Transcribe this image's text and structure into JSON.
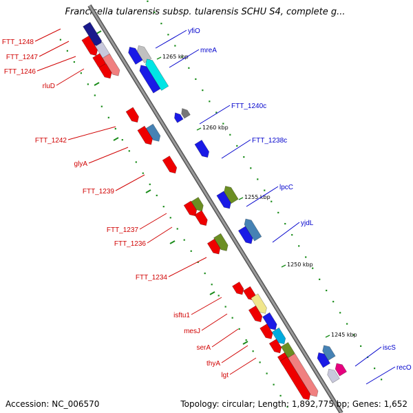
{
  "title": "Francisella tularensis subsp. tularensis SCHU S4, complete g...",
  "footer": {
    "accession": "Accession: NC_006570",
    "topology": "Topology: circular; Length: 1,892,775 bp; Genes: 1,652"
  },
  "colors": {
    "backbone": "#8c8c8c",
    "forward_gene": "#ee0000",
    "reverse_gene": "#1a1ae6",
    "forward_label": "#d00000",
    "reverse_label": "#0000cc",
    "tick_mark": "#1a8c1a"
  },
  "tick_labels": [
    "1265 kbp",
    "1260 kbp",
    "1255 kbp",
    "1250 kbp",
    "1245 kbp"
  ],
  "left_genes": [
    {
      "label": "FTT_1248"
    },
    {
      "label": "FTT_1247"
    },
    {
      "label": "FTT_1246"
    },
    {
      "label": "rluD"
    },
    {
      "label": "FTT_1242"
    },
    {
      "label": "glyA"
    },
    {
      "label": "FTT_1239"
    },
    {
      "label": "FTT_1237"
    },
    {
      "label": "FTT_1236"
    },
    {
      "label": "FTT_1234"
    },
    {
      "label": "isftu1"
    },
    {
      "label": "mesJ"
    },
    {
      "label": "serA"
    },
    {
      "label": "thyA"
    },
    {
      "label": "lgt"
    }
  ],
  "right_genes": [
    {
      "label": "yfiO"
    },
    {
      "label": "mreA"
    },
    {
      "label": "FTT_1240c"
    },
    {
      "label": "FTT_1238c"
    },
    {
      "label": "lpcC"
    },
    {
      "label": "yjdL"
    },
    {
      "label": "iscS"
    },
    {
      "label": "recO"
    }
  ]
}
